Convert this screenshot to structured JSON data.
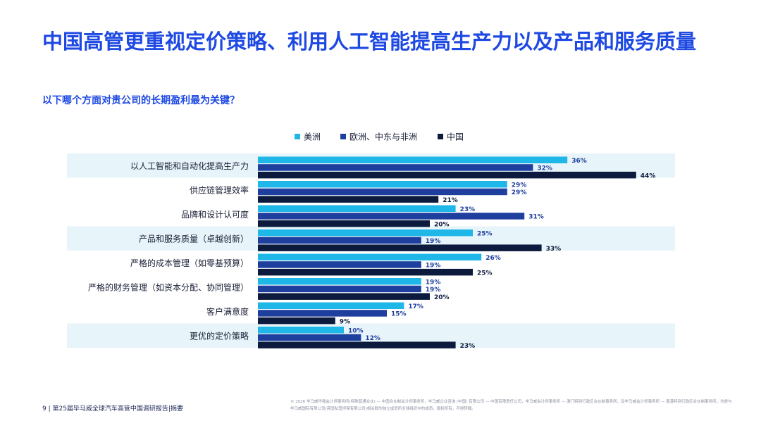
{
  "header": {
    "title": "中国高管更重视定价策略、利用人工智能提高生产力以及产品和服务质量",
    "subtitle": "以下哪个方面对贵公司的长期盈利最为关键？"
  },
  "colors": {
    "americas": "#1fb7e8",
    "emea": "#1e3f9e",
    "china": "#0c1b3d",
    "band": "#e7f4fa",
    "accent": "#1e49e2"
  },
  "chart_data": {
    "type": "bar",
    "orientation": "horizontal",
    "categories": [
      "以人工智能和自动化提高生产力",
      "供应链管理效率",
      "品牌和设计认可度",
      "产品和服务质量（卓越创新）",
      "严格的成本管理（如零基预算）",
      "严格的财务管理（如资本分配、协同管理）",
      "客户满意度",
      "更优的定价策略"
    ],
    "highlighted_categories": [
      0,
      3,
      7
    ],
    "series": [
      {
        "name": "美洲",
        "values": [
          36,
          29,
          23,
          25,
          26,
          19,
          17,
          10
        ],
        "labels": [
          "36%",
          "29%",
          "23%",
          "25%",
          "26%",
          "19%",
          "17%",
          "10%"
        ],
        "color": "#1fb7e8"
      },
      {
        "name": "欧洲、中东与非洲",
        "values": [
          32,
          29,
          31,
          19,
          19,
          19,
          15,
          12
        ],
        "labels": [
          "32%",
          "29%",
          "31%",
          "19%",
          "19%",
          "19%",
          "15%",
          "12%"
        ],
        "color": "#1e3f9e"
      },
      {
        "name": "中国",
        "values": [
          44,
          21,
          20,
          33,
          25,
          20,
          9,
          23
        ],
        "labels": [
          "44%",
          "21%",
          "20%",
          "33%",
          "25%",
          "20%",
          "9%",
          "23%"
        ],
        "color": "#0c1b3d"
      }
    ],
    "xlim": [
      0,
      60
    ],
    "unit": "%",
    "grid": false,
    "legend_position": "top"
  },
  "footer": {
    "left": "9 | 第25届毕马威全球汽车高管中国调研报告|摘要",
    "right": "© 2026 毕马威华振会计师事务所(特殊普通合伙) — 中国合伙制会计师事务所，毕马威企业咨询 (中国) 有限公司 — 中国有限责任公司，毕马威会计师事务所 — 澳门特别行政区合伙制事务所，及毕马威会计师事务所 — 香港特别行政区合伙制事务所，均是与毕马威国际有限公司(英国私营担保有限公司)相关联的独立成员所全球组织中的成员。版权所有，不得转载。"
  }
}
